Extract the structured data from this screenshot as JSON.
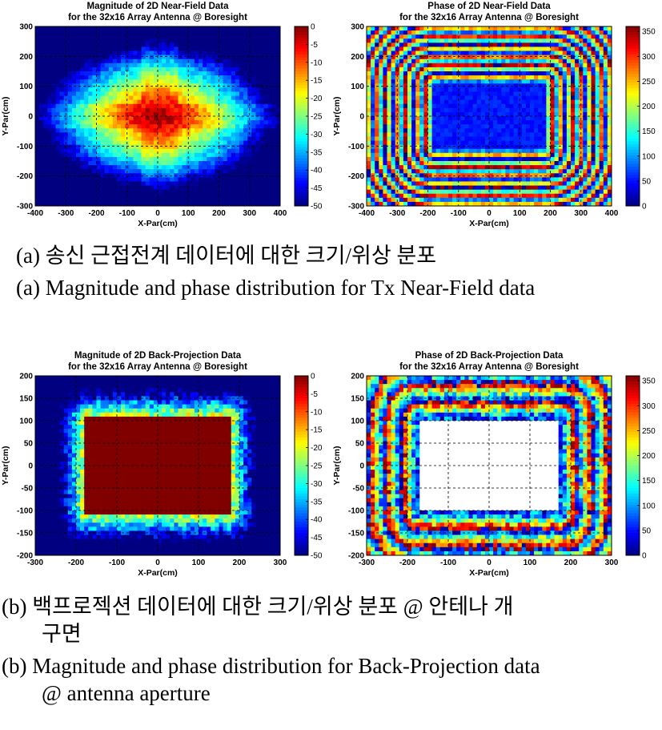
{
  "chart_data": [
    {
      "type": "heatmap",
      "title_lines": [
        "Magnitude of 2D Near-Field Data",
        "for the 32x16 Array Antenna @ Boresight"
      ],
      "xlabel": "X-Par(cm)",
      "ylabel": "Y-Par(cm)",
      "xlim": [
        -400,
        400
      ],
      "ylim": [
        -300,
        300
      ],
      "xticks": [
        -400,
        -300,
        -200,
        -100,
        0,
        100,
        200,
        300,
        400
      ],
      "yticks": [
        -300,
        -200,
        -100,
        0,
        100,
        200,
        300
      ],
      "colorbar": {
        "range": [
          -50,
          0
        ],
        "ticks": [
          0,
          -5,
          -10,
          -15,
          -20,
          -25,
          -30,
          -35,
          -40,
          -45,
          -50
        ]
      },
      "quantity": "magnitude",
      "aperture": {
        "x": [
          -180,
          180
        ],
        "y": [
          -110,
          110
        ]
      },
      "grid": true
    },
    {
      "type": "heatmap",
      "title_lines": [
        "Phase of 2D Near-Field Data",
        "for the 32x16 Array Antenna @ Boresight"
      ],
      "xlabel": "X-Par(cm)",
      "ylabel": "Y-Par(cm)",
      "xlim": [
        -400,
        400
      ],
      "ylim": [
        -300,
        300
      ],
      "xticks": [
        -400,
        -300,
        -200,
        -100,
        0,
        100,
        200,
        300,
        400
      ],
      "yticks": [
        -300,
        -200,
        -100,
        0,
        100,
        200,
        300
      ],
      "colorbar": {
        "range": [
          0,
          360
        ],
        "ticks": [
          350,
          300,
          250,
          200,
          150,
          100,
          50,
          0
        ]
      },
      "quantity": "phase",
      "aperture": {
        "x": [
          -180,
          180
        ],
        "y": [
          -110,
          110
        ]
      },
      "grid": true
    },
    {
      "type": "heatmap",
      "title_lines": [
        "Magnitude of 2D Back-Projection Data",
        "for the 32x16 Array Antenna @ Boresight"
      ],
      "xlabel": "X-Par(cm)",
      "ylabel": "Y-Par(cm)",
      "xlim": [
        -300,
        300
      ],
      "ylim": [
        -200,
        200
      ],
      "xticks": [
        -300,
        -200,
        -100,
        0,
        100,
        200,
        300
      ],
      "yticks": [
        -200,
        -150,
        -100,
        -50,
        0,
        50,
        100,
        150,
        200
      ],
      "colorbar": {
        "range": [
          -50,
          0
        ],
        "ticks": [
          0,
          -5,
          -10,
          -15,
          -20,
          -25,
          -30,
          -35,
          -40,
          -45,
          -50
        ]
      },
      "quantity": "magnitude",
      "aperture": {
        "x": [
          -180,
          180
        ],
        "y": [
          -110,
          110
        ]
      },
      "grid": true
    },
    {
      "type": "heatmap",
      "title_lines": [
        "Phase of 2D Back-Projection Data",
        "for the 32x16 Array Antenna @ Boresight"
      ],
      "xlabel": "X-Par(cm)",
      "ylabel": "Y-Par(cm)",
      "xlim": [
        -300,
        300
      ],
      "ylim": [
        -200,
        200
      ],
      "xticks": [
        -300,
        -200,
        -100,
        0,
        100,
        200,
        300
      ],
      "yticks": [
        -200,
        -150,
        -100,
        -50,
        0,
        50,
        100,
        150,
        200
      ],
      "colorbar": {
        "range": [
          0,
          360
        ],
        "ticks": [
          350,
          300,
          250,
          200,
          150,
          100,
          50,
          0
        ]
      },
      "quantity": "phase",
      "aperture": {
        "x": [
          -180,
          180
        ],
        "y": [
          -110,
          110
        ]
      },
      "grid": true
    }
  ],
  "captions": {
    "a_ko": "(a) 송신 근접전계 데이터에 대한 크기/위상 분포",
    "a_en": "(a) Magnitude and phase distribution for Tx Near-Field data",
    "b_ko_1": "(b) 백프로젝션 데이터에 대한 크기/위상 분포 @ 안테나 개",
    "b_ko_2": "구면",
    "b_en_1": "(b) Magnitude and phase distribution for Back-Projection data",
    "b_en_2": "@ antenna aperture"
  }
}
